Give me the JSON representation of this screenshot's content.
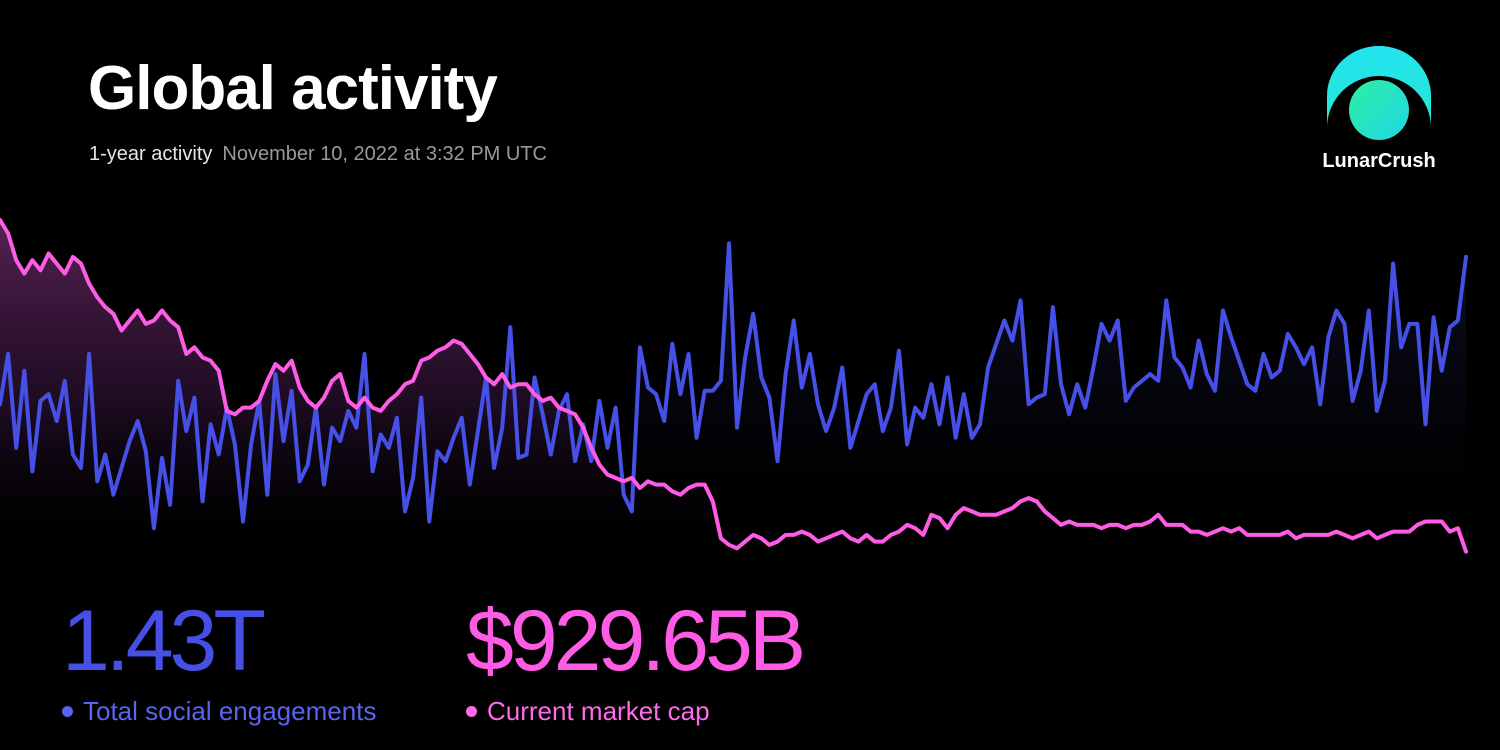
{
  "header": {
    "title": "Global activity",
    "period": "1-year activity",
    "timestamp": "November 10, 2022 at 3:32 PM UTC"
  },
  "brand": {
    "name": "LunarCrush",
    "icon": "lunarcrush-logo-icon",
    "colors": [
      "#22e3f0",
      "#2cf0a0"
    ]
  },
  "stats": {
    "social": {
      "value": "1.43T",
      "label": "Total social engagements",
      "color": "#4650e6"
    },
    "market_cap": {
      "value": "$929.65B",
      "label": "Current market cap",
      "color": "#ff5ce6"
    }
  },
  "chart_data": {
    "type": "line",
    "grid": false,
    "legend": "none",
    "series": [
      {
        "name": "Total social engagements",
        "color": "#4650e6",
        "values": [
          0.45,
          0.6,
          0.32,
          0.55,
          0.25,
          0.46,
          0.48,
          0.4,
          0.52,
          0.3,
          0.26,
          0.6,
          0.22,
          0.3,
          0.18,
          0.26,
          0.34,
          0.4,
          0.31,
          0.08,
          0.29,
          0.15,
          0.52,
          0.37,
          0.47,
          0.16,
          0.39,
          0.3,
          0.44,
          0.33,
          0.1,
          0.33,
          0.46,
          0.18,
          0.54,
          0.34,
          0.49,
          0.22,
          0.27,
          0.44,
          0.21,
          0.38,
          0.34,
          0.43,
          0.38,
          0.6,
          0.25,
          0.36,
          0.32,
          0.41,
          0.13,
          0.23,
          0.47,
          0.1,
          0.31,
          0.28,
          0.35,
          0.41,
          0.21,
          0.37,
          0.53,
          0.26,
          0.38,
          0.68,
          0.29,
          0.3,
          0.53,
          0.42,
          0.3,
          0.43,
          0.48,
          0.28,
          0.39,
          0.28,
          0.46,
          0.32,
          0.44,
          0.18,
          0.13,
          0.62,
          0.5,
          0.48,
          0.4,
          0.63,
          0.48,
          0.6,
          0.35,
          0.49,
          0.49,
          0.52,
          0.93,
          0.38,
          0.59,
          0.72,
          0.53,
          0.47,
          0.28,
          0.54,
          0.7,
          0.5,
          0.6,
          0.45,
          0.37,
          0.44,
          0.56,
          0.32,
          0.4,
          0.48,
          0.51,
          0.37,
          0.44,
          0.61,
          0.33,
          0.44,
          0.41,
          0.51,
          0.39,
          0.53,
          0.35,
          0.48,
          0.35,
          0.39,
          0.56,
          0.63,
          0.7,
          0.64,
          0.76,
          0.45,
          0.47,
          0.48,
          0.74,
          0.51,
          0.42,
          0.51,
          0.44,
          0.56,
          0.69,
          0.64,
          0.7,
          0.46,
          0.5,
          0.52,
          0.54,
          0.52,
          0.76,
          0.59,
          0.56,
          0.5,
          0.64,
          0.54,
          0.49,
          0.73,
          0.65,
          0.58,
          0.51,
          0.49,
          0.6,
          0.53,
          0.55,
          0.66,
          0.62,
          0.57,
          0.62,
          0.45,
          0.65,
          0.73,
          0.69,
          0.46,
          0.55,
          0.73,
          0.43,
          0.52,
          0.87,
          0.62,
          0.69,
          0.69,
          0.39,
          0.71,
          0.55,
          0.68,
          0.7,
          0.89
        ]
      },
      {
        "name": "Current market cap",
        "color": "#ff5ce6",
        "values": [
          1.0,
          0.96,
          0.88,
          0.84,
          0.88,
          0.85,
          0.9,
          0.87,
          0.84,
          0.89,
          0.87,
          0.81,
          0.77,
          0.74,
          0.72,
          0.67,
          0.7,
          0.73,
          0.69,
          0.7,
          0.73,
          0.7,
          0.68,
          0.6,
          0.62,
          0.59,
          0.58,
          0.55,
          0.43,
          0.42,
          0.44,
          0.44,
          0.46,
          0.52,
          0.57,
          0.55,
          0.58,
          0.5,
          0.46,
          0.44,
          0.47,
          0.52,
          0.54,
          0.46,
          0.44,
          0.47,
          0.44,
          0.43,
          0.46,
          0.48,
          0.51,
          0.52,
          0.58,
          0.59,
          0.61,
          0.62,
          0.64,
          0.63,
          0.6,
          0.57,
          0.53,
          0.51,
          0.54,
          0.5,
          0.51,
          0.51,
          0.48,
          0.46,
          0.47,
          0.44,
          0.43,
          0.42,
          0.38,
          0.32,
          0.27,
          0.24,
          0.23,
          0.22,
          0.23,
          0.2,
          0.22,
          0.21,
          0.21,
          0.19,
          0.18,
          0.2,
          0.21,
          0.21,
          0.16,
          0.05,
          0.03,
          0.02,
          0.04,
          0.06,
          0.05,
          0.03,
          0.04,
          0.06,
          0.06,
          0.07,
          0.06,
          0.04,
          0.05,
          0.06,
          0.07,
          0.05,
          0.04,
          0.06,
          0.04,
          0.04,
          0.06,
          0.07,
          0.09,
          0.08,
          0.06,
          0.12,
          0.11,
          0.08,
          0.12,
          0.14,
          0.13,
          0.12,
          0.12,
          0.12,
          0.13,
          0.14,
          0.16,
          0.17,
          0.16,
          0.13,
          0.11,
          0.09,
          0.1,
          0.09,
          0.09,
          0.09,
          0.08,
          0.09,
          0.09,
          0.08,
          0.09,
          0.09,
          0.1,
          0.12,
          0.09,
          0.09,
          0.09,
          0.07,
          0.07,
          0.06,
          0.07,
          0.08,
          0.07,
          0.08,
          0.06,
          0.06,
          0.06,
          0.06,
          0.06,
          0.07,
          0.05,
          0.06,
          0.06,
          0.06,
          0.06,
          0.07,
          0.06,
          0.05,
          0.06,
          0.07,
          0.05,
          0.06,
          0.07,
          0.07,
          0.07,
          0.09,
          0.1,
          0.1,
          0.1,
          0.07,
          0.08,
          0.01
        ]
      }
    ]
  }
}
